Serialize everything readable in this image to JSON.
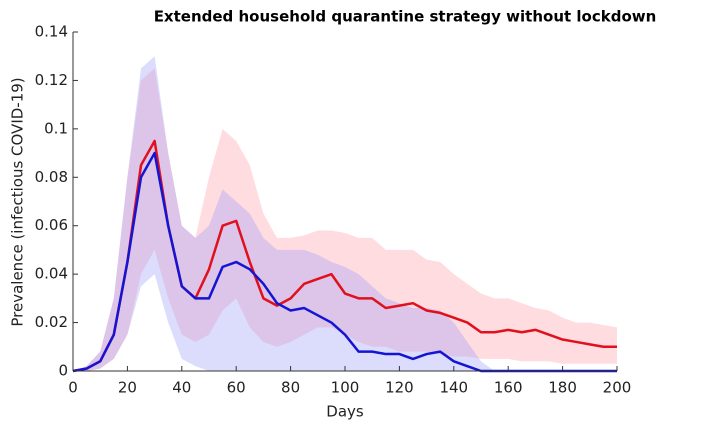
{
  "chart_data": {
    "type": "line",
    "title": "Extended household quarantine strategy without lockdown",
    "x_label": "Days",
    "y_label": "Prevalence (infectious COVID-19)",
    "x": [
      0,
      5,
      10,
      15,
      20,
      25,
      30,
      35,
      40,
      45,
      50,
      55,
      60,
      65,
      70,
      75,
      80,
      85,
      90,
      95,
      100,
      105,
      110,
      115,
      120,
      125,
      130,
      135,
      140,
      145,
      150,
      155,
      160,
      165,
      170,
      175,
      180,
      185,
      190,
      195,
      200
    ],
    "series": [
      {
        "color": "#e0101e",
        "band_color": "#ff9aa6",
        "values": [
          0,
          0.001,
          0.004,
          0.015,
          0.045,
          0.085,
          0.095,
          0.06,
          0.035,
          0.03,
          0.042,
          0.06,
          0.062,
          0.045,
          0.03,
          0.027,
          0.03,
          0.036,
          0.038,
          0.04,
          0.032,
          0.03,
          0.03,
          0.026,
          0.027,
          0.028,
          0.025,
          0.024,
          0.022,
          0.02,
          0.016,
          0.016,
          0.017,
          0.016,
          0.017,
          0.015,
          0.013,
          0.012,
          0.011,
          0.01,
          0.01
        ],
        "upper": [
          0,
          0.002,
          0.008,
          0.03,
          0.08,
          0.12,
          0.125,
          0.09,
          0.06,
          0.055,
          0.08,
          0.1,
          0.095,
          0.085,
          0.065,
          0.055,
          0.055,
          0.056,
          0.058,
          0.058,
          0.057,
          0.055,
          0.055,
          0.05,
          0.05,
          0.05,
          0.046,
          0.045,
          0.04,
          0.036,
          0.032,
          0.03,
          0.03,
          0.028,
          0.026,
          0.025,
          0.022,
          0.02,
          0.02,
          0.019,
          0.018
        ],
        "lower": [
          0,
          0,
          0.001,
          0.005,
          0.015,
          0.04,
          0.05,
          0.03,
          0.015,
          0.012,
          0.015,
          0.025,
          0.03,
          0.018,
          0.012,
          0.01,
          0.012,
          0.015,
          0.018,
          0.018,
          0.015,
          0.012,
          0.01,
          0.01,
          0.008,
          0.008,
          0.008,
          0.007,
          0.006,
          0.006,
          0.005,
          0.005,
          0.005,
          0.004,
          0.004,
          0.004,
          0.003,
          0.003,
          0.003,
          0.003,
          0.003
        ]
      },
      {
        "color": "#1414d2",
        "band_color": "#9a9af5",
        "values": [
          0,
          0.001,
          0.004,
          0.015,
          0.045,
          0.08,
          0.09,
          0.06,
          0.035,
          0.03,
          0.03,
          0.043,
          0.045,
          0.042,
          0.036,
          0.028,
          0.025,
          0.026,
          0.023,
          0.02,
          0.015,
          0.008,
          0.008,
          0.007,
          0.007,
          0.005,
          0.007,
          0.008,
          0.004,
          0.002,
          0,
          0,
          0,
          0,
          0,
          0,
          0,
          0,
          0,
          0,
          0
        ],
        "upper": [
          0,
          0.002,
          0.008,
          0.03,
          0.08,
          0.125,
          0.13,
          0.09,
          0.06,
          0.055,
          0.06,
          0.075,
          0.07,
          0.065,
          0.055,
          0.05,
          0.05,
          0.05,
          0.048,
          0.045,
          0.043,
          0.04,
          0.035,
          0.03,
          0.028,
          0.026,
          0.026,
          0.025,
          0.02,
          0.012,
          0.004,
          0,
          0,
          0,
          0,
          0,
          0,
          0,
          0,
          0,
          0
        ],
        "lower": [
          0,
          0,
          0.001,
          0.005,
          0.015,
          0.035,
          0.04,
          0.02,
          0.005,
          0.002,
          0,
          0,
          0,
          0,
          0,
          0,
          0,
          0,
          0,
          0,
          0,
          0,
          0,
          0,
          0,
          0,
          0,
          0,
          0,
          0,
          0,
          0,
          0,
          0,
          0,
          0,
          0,
          0,
          0,
          0,
          0
        ]
      }
    ],
    "xlim": [
      0,
      200
    ],
    "xticks": [
      0,
      20,
      40,
      60,
      80,
      100,
      120,
      140,
      160,
      180,
      200
    ],
    "ylim": [
      0,
      0.14
    ],
    "yticks": [
      0,
      0.02,
      0.04,
      0.06,
      0.08,
      0.1,
      0.12,
      0.14
    ],
    "grid": false
  }
}
